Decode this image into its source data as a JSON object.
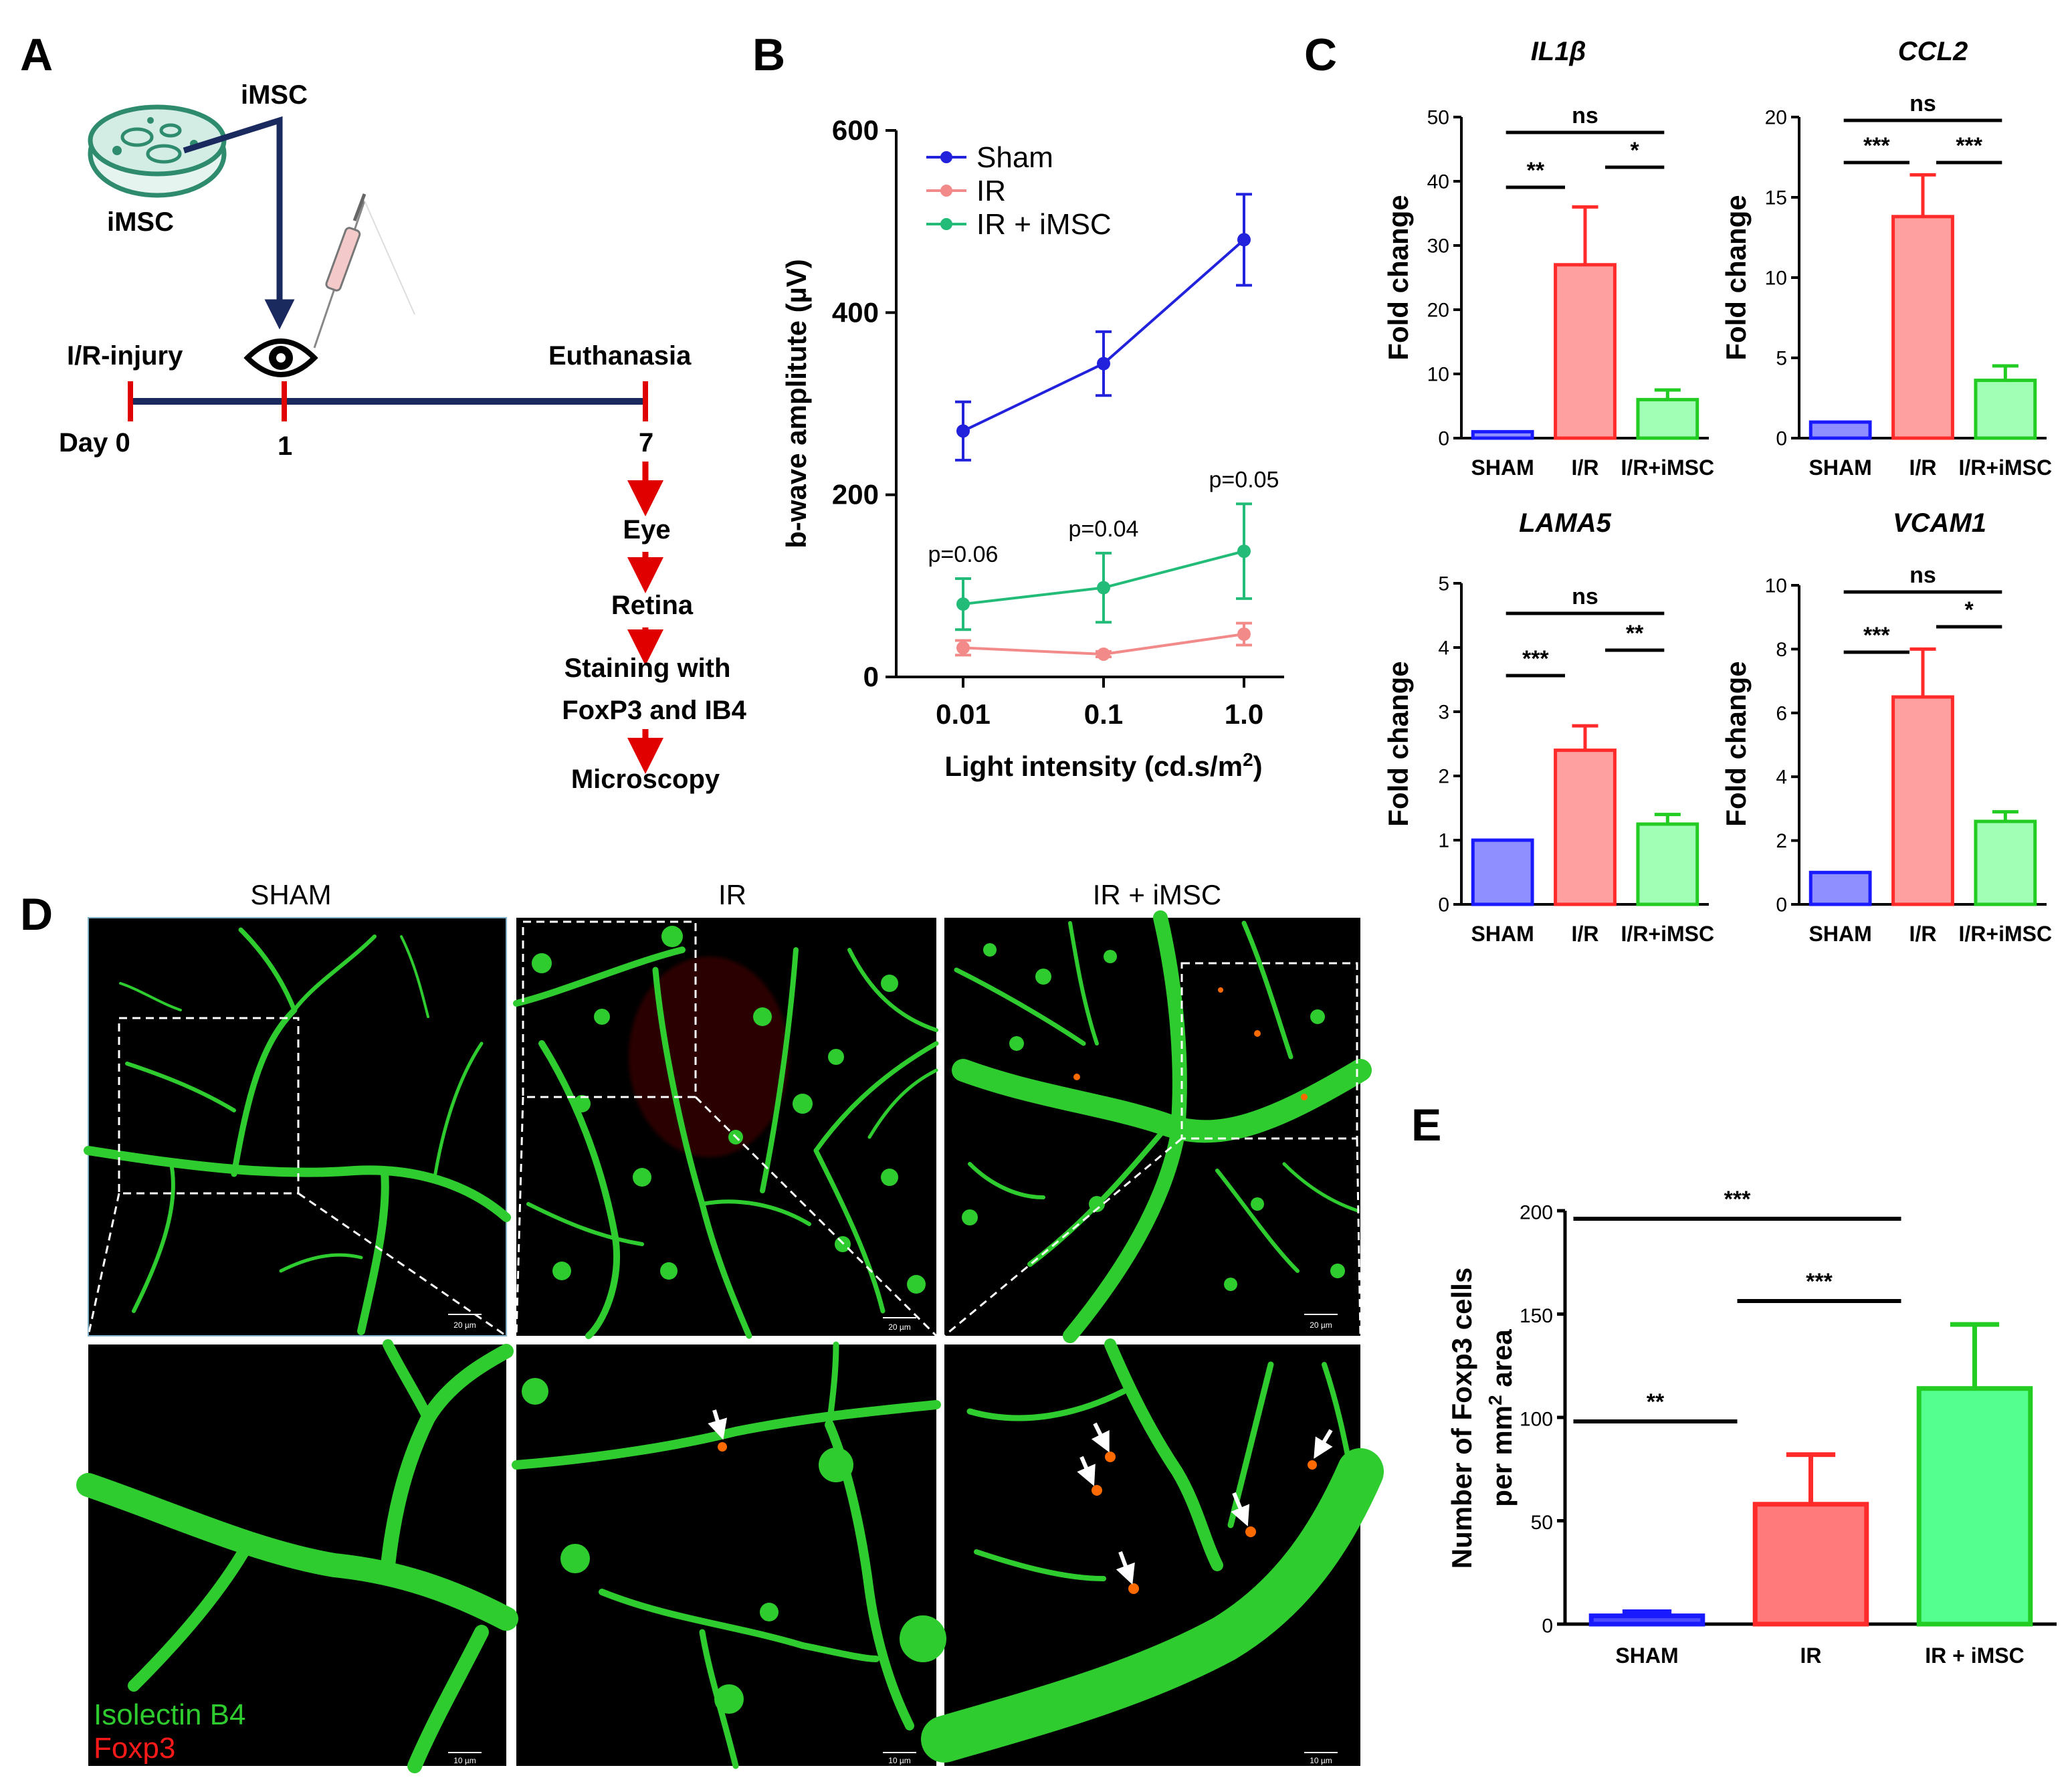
{
  "panels": {
    "A": {
      "letter": "A",
      "source_label_top": "iMSC",
      "source_label_dish": "iMSC",
      "event_injury": "I/R-injury",
      "event_end": "Euthanasia",
      "day0": "Day 0",
      "day1": "1",
      "day7": "7",
      "steps": [
        "Eye",
        "Retina",
        "Staining with",
        "FoxP3 and IB4",
        "Microscopy"
      ]
    },
    "B": {
      "letter": "B"
    },
    "C": {
      "letter": "C"
    },
    "D": {
      "letter": "D",
      "titles": [
        "SHAM",
        "IR",
        "IR + iMSC"
      ],
      "scalebars_top": [
        "20 µm",
        "20 µm",
        "20 µm"
      ],
      "scalebars_bottom": [
        "10 µm",
        "10 µm",
        "10 µm"
      ],
      "legend_green": "Isolectin B4",
      "legend_red": "Foxp3"
    },
    "E": {
      "letter": "E"
    }
  },
  "colors": {
    "sham": "#1a1aff",
    "ir": "#ff2a2a",
    "irmsc": "#22cc22",
    "line_sham": "#2222dd",
    "line_ir": "#f28a8a",
    "line_irmsc": "#22bb77",
    "arrow": "#e00000",
    "timeline": "#1a2a5e"
  },
  "chart_data": [
    {
      "id": "B",
      "type": "line",
      "x": [
        "0.01",
        "0.1",
        "1.0"
      ],
      "xlabel_main": "Light intensity (cd.s/m",
      "xlabel_sup": "2",
      "xlabel_end": ")",
      "ylabel": "b-wave amplitute (µV)",
      "ylim": [
        0,
        600
      ],
      "yticks": [
        0,
        200,
        400,
        600
      ],
      "series": [
        {
          "name": "Sham",
          "values": [
            270,
            344,
            480
          ],
          "errors": [
            32,
            35,
            50
          ]
        },
        {
          "name": "IR",
          "values": [
            32,
            25,
            47
          ],
          "errors": [
            8,
            3,
            12
          ]
        },
        {
          "name": "IR + iMSC",
          "values": [
            80,
            98,
            138
          ],
          "errors": [
            28,
            38,
            52
          ]
        }
      ],
      "annotations": [
        "p=0.06",
        "p=0.04",
        "p=0.05"
      ],
      "legend": "top-left"
    },
    {
      "id": "C1",
      "type": "bar",
      "title": "IL1β",
      "categories": [
        "SHAM",
        "I/R",
        "I/R+iMSC"
      ],
      "values": [
        1,
        27,
        6
      ],
      "errors": [
        0,
        9,
        1.5
      ],
      "ylabel": "Fold change",
      "ylim": [
        0,
        50
      ],
      "yticks": [
        0,
        10,
        20,
        30,
        40,
        50
      ],
      "significance": [
        {
          "from": 0,
          "to": 2,
          "label": "ns"
        },
        {
          "from": 0,
          "to": 1,
          "label": "**"
        },
        {
          "from": 1,
          "to": 2,
          "label": "*"
        }
      ]
    },
    {
      "id": "C2",
      "type": "bar",
      "title": "CCL2",
      "categories": [
        "SHAM",
        "I/R",
        "I/R+iMSC"
      ],
      "values": [
        1,
        13.8,
        3.6
      ],
      "errors": [
        0,
        2.6,
        0.9
      ],
      "ylabel": "Fold change",
      "ylim": [
        0,
        20
      ],
      "yticks": [
        0,
        5,
        10,
        15,
        20
      ],
      "significance": [
        {
          "from": 0,
          "to": 2,
          "label": "ns"
        },
        {
          "from": 0,
          "to": 1,
          "label": "***"
        },
        {
          "from": 1,
          "to": 2,
          "label": "***"
        }
      ]
    },
    {
      "id": "C3",
      "type": "bar",
      "title": "LAMA5",
      "categories": [
        "SHAM",
        "I/R",
        "I/R+iMSC"
      ],
      "values": [
        1,
        2.4,
        1.25
      ],
      "errors": [
        0,
        0.38,
        0.15
      ],
      "ylabel": "Fold change",
      "ylim": [
        0,
        5
      ],
      "yticks": [
        0,
        1,
        2,
        3,
        4,
        5
      ],
      "significance": [
        {
          "from": 0,
          "to": 2,
          "label": "ns"
        },
        {
          "from": 0,
          "to": 1,
          "label": "***"
        },
        {
          "from": 1,
          "to": 2,
          "label": "**"
        }
      ]
    },
    {
      "id": "C4",
      "type": "bar",
      "title": "VCAM1",
      "categories": [
        "SHAM",
        "I/R",
        "I/R+iMSC"
      ],
      "values": [
        1,
        6.5,
        2.6
      ],
      "errors": [
        0,
        1.5,
        0.3
      ],
      "ylabel": "Fold change",
      "ylim": [
        0,
        10
      ],
      "yticks": [
        0,
        2,
        4,
        6,
        8,
        10
      ],
      "significance": [
        {
          "from": 0,
          "to": 2,
          "label": "ns"
        },
        {
          "from": 0,
          "to": 1,
          "label": "***"
        },
        {
          "from": 1,
          "to": 2,
          "label": "*"
        }
      ]
    },
    {
      "id": "E",
      "type": "bar",
      "categories": [
        "SHAM",
        "IR",
        "IR + iMSC"
      ],
      "values": [
        4,
        58,
        114
      ],
      "errors": [
        2,
        24,
        31
      ],
      "ylabel_line1": "Number of Foxp3 cells",
      "ylabel_line2_main": "per mm",
      "ylabel_line2_sup": "2",
      "ylabel_line2_end": " area",
      "ylim": [
        0,
        200
      ],
      "yticks": [
        0,
        50,
        100,
        150,
        200
      ],
      "significance": [
        {
          "from": 0,
          "to": 2,
          "label": "***"
        },
        {
          "from": 0,
          "to": 1,
          "label": "**"
        },
        {
          "from": 1,
          "to": 2,
          "label": "***"
        }
      ]
    }
  ]
}
